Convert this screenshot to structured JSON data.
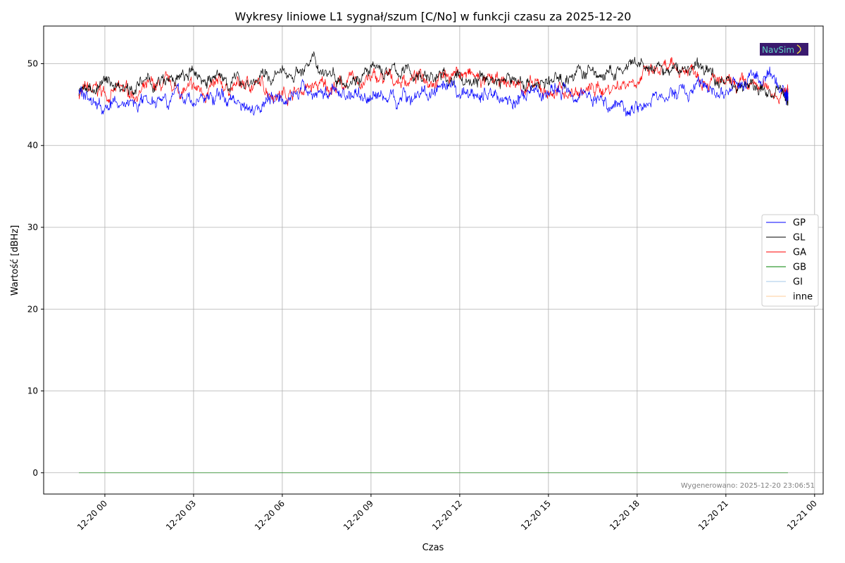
{
  "chart_data": {
    "type": "line",
    "title": "Wykresy liniowe L1 sygnał/szum [C/No] w funkcji czasu za 2025-12-20",
    "xlabel": "Czas",
    "ylabel": "Wartość [dBHz]",
    "ylim": [
      -2.6,
      54.6
    ],
    "xlim_hours_from_2025_12_20_00": [
      -2.07,
      24.29
    ],
    "grid": true,
    "legend_position": "right",
    "yticks": [
      0,
      10,
      20,
      30,
      40,
      50
    ],
    "xticks": [
      {
        "h": 0,
        "label": "12-20 00"
      },
      {
        "h": 3,
        "label": "12-20 03"
      },
      {
        "h": 6,
        "label": "12-20 06"
      },
      {
        "h": 9,
        "label": "12-20 09"
      },
      {
        "h": 12,
        "label": "12-20 12"
      },
      {
        "h": 15,
        "label": "12-20 15"
      },
      {
        "h": 18,
        "label": "12-20 18"
      },
      {
        "h": 21,
        "label": "12-20 21"
      },
      {
        "h": 24,
        "label": "12-21 00"
      }
    ],
    "x_hours": [
      -0.88,
      0,
      1,
      2,
      3,
      4,
      5,
      6,
      7,
      8,
      9,
      10,
      11,
      12,
      13,
      14,
      15,
      16,
      17,
      18,
      19,
      20,
      21,
      22,
      23,
      23.1
    ],
    "series": [
      {
        "name": "GP",
        "color": "#0000ff",
        "values": [
          46.5,
          44.5,
          45.5,
          46.5,
          45.5,
          46,
          45,
          46.5,
          46.5,
          46.5,
          46,
          46,
          46.5,
          46,
          46.5,
          45.5,
          46.5,
          47,
          45,
          45,
          46,
          47,
          46.5,
          48.5,
          46.5,
          46.5
        ]
      },
      {
        "name": "GL",
        "color": "#000000",
        "values": [
          46.5,
          47.5,
          47.5,
          47.5,
          48.5,
          48,
          48,
          48.5,
          50,
          48.5,
          49,
          49,
          48.5,
          48,
          48,
          48,
          47.5,
          49,
          48.5,
          49.5,
          49,
          49.5,
          48,
          47,
          46,
          46
        ]
      },
      {
        "name": "GA",
        "color": "#ff0000",
        "values": [
          46.5,
          46.5,
          46.5,
          47,
          46.5,
          47,
          47.5,
          46.5,
          47,
          47.5,
          48,
          48,
          48.5,
          49,
          47.5,
          47.5,
          46.5,
          46.5,
          47,
          48.5,
          49,
          49.5,
          47,
          47,
          46.5,
          46.5
        ]
      },
      {
        "name": "GB",
        "color": "#008000",
        "values": [
          0,
          0,
          0,
          0,
          0,
          0,
          0,
          0,
          0,
          0,
          0,
          0,
          0,
          0,
          0,
          0,
          0,
          0,
          0,
          0,
          0,
          0,
          0,
          0,
          0,
          0
        ]
      },
      {
        "name": "GI",
        "color": "#a6c8e8",
        "values": [
          0,
          0,
          0,
          0,
          0,
          0,
          0,
          0,
          0,
          0,
          0,
          0,
          0,
          0,
          0,
          0,
          0,
          0,
          0,
          0,
          0,
          0,
          0,
          0,
          0,
          0
        ]
      },
      {
        "name": "inne",
        "color": "#ffcc99",
        "values": [
          0,
          0,
          0,
          0,
          0,
          0,
          0,
          0,
          0,
          0,
          0,
          0,
          0,
          0,
          0,
          0,
          0,
          0,
          0,
          0,
          0,
          0,
          0,
          0,
          0,
          0
        ]
      }
    ],
    "annotation": "Wygenerowano: 2025-12-20 23:06:51",
    "logo_text": "NavSim"
  }
}
